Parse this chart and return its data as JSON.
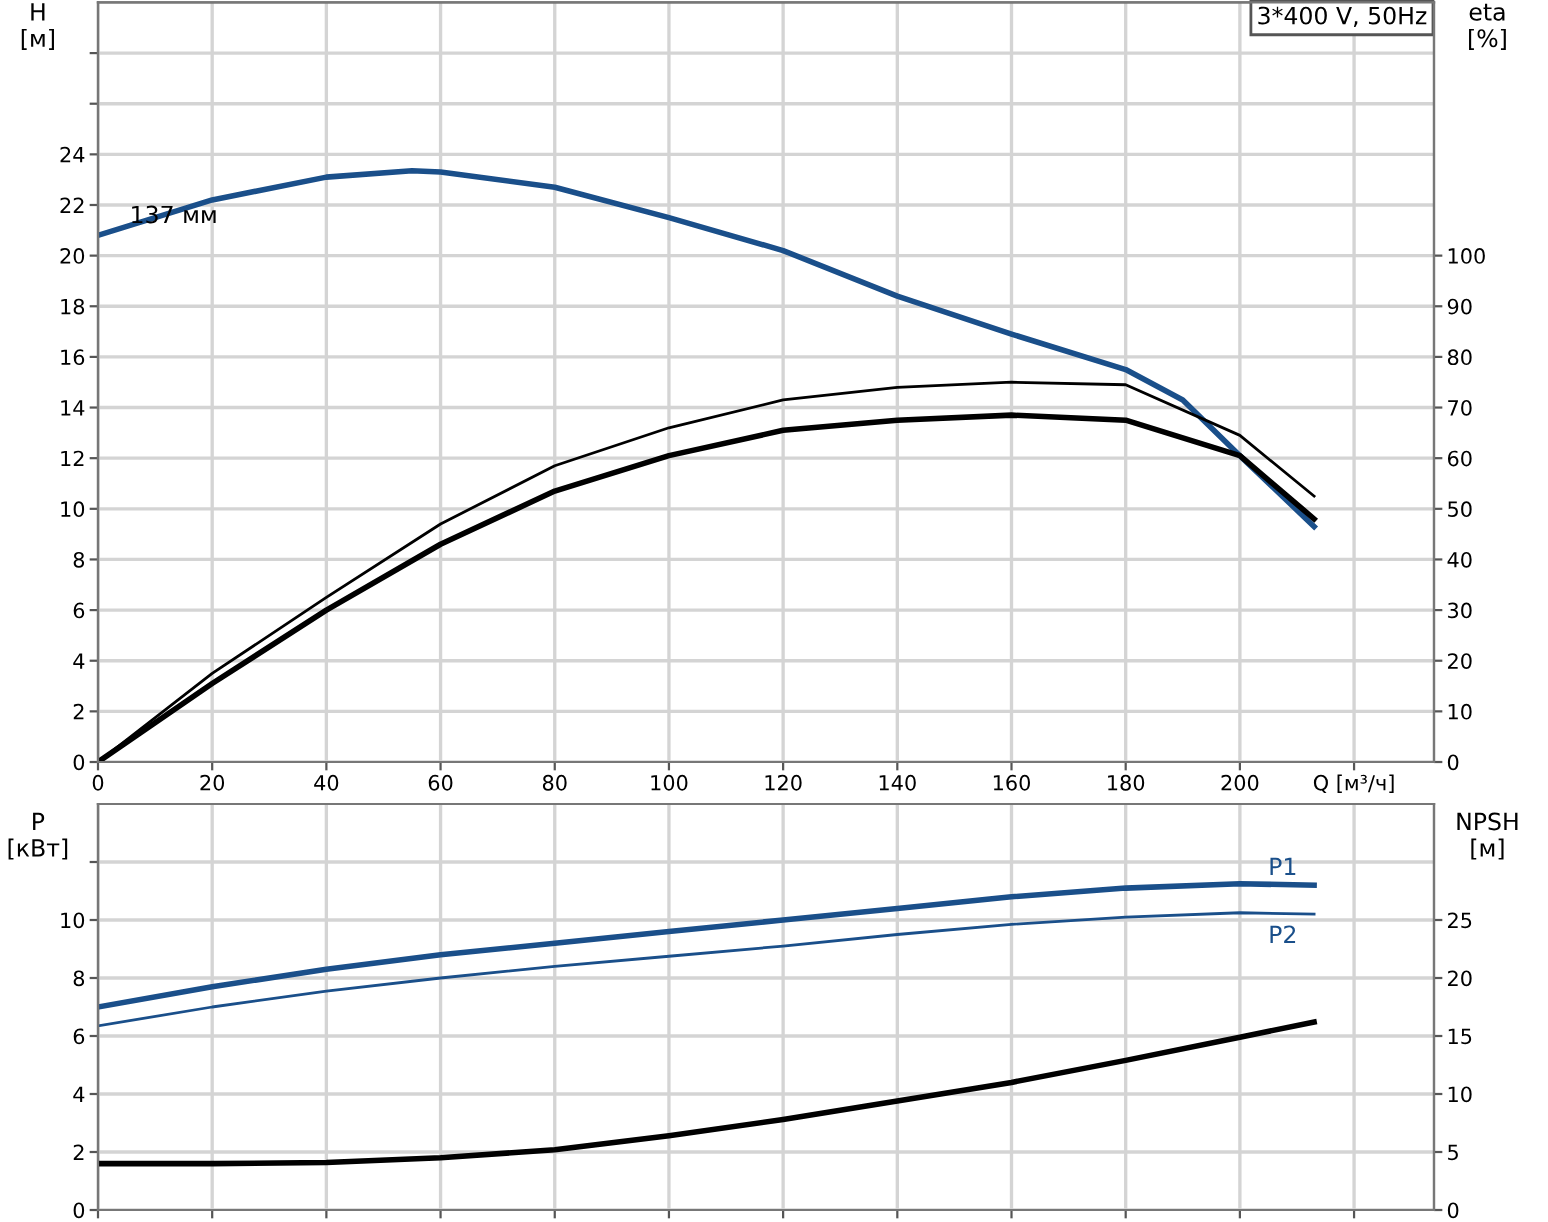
{
  "chart_data": [
    {
      "type": "line",
      "ylabel": "H\n[м]",
      "y2label": "eta\n[%]",
      "annotations": [
        "3*400 V, 50Hz",
        {
          "text": "137 мм",
          "x": 20,
          "y": 22.2
        }
      ],
      "xlim": [
        0,
        234
      ],
      "xticks": [
        0,
        20,
        40,
        60,
        80,
        100,
        120,
        140,
        160,
        180,
        200,
        {
          "value": 220,
          "label": "Q [м³/ч]"
        }
      ],
      "ylim": [
        0,
        30
      ],
      "yticks": [
        0,
        2,
        4,
        6,
        8,
        10,
        12,
        14,
        16,
        18,
        20,
        22,
        24,
        {
          "value": 26,
          "label": null
        },
        {
          "value": 28,
          "label": null
        }
      ],
      "y2lim": [
        0,
        150
      ],
      "y2ticks": [
        0,
        10,
        20,
        30,
        40,
        50,
        60,
        70,
        80,
        90,
        100
      ],
      "grid": true,
      "legend": false,
      "series": [
        {
          "color": "#1a4f8a",
          "x": [
            0,
            20,
            40,
            55,
            60,
            80,
            100,
            120,
            140,
            160,
            180,
            190,
            200,
            213
          ],
          "values": [
            20.8,
            22.2,
            23.1,
            23.35,
            23.3,
            22.7,
            21.5,
            20.2,
            18.4,
            16.9,
            15.5,
            14.3,
            12.1,
            9.3
          ]
        },
        {
          "color": "#000000",
          "axis": "y2",
          "x": [
            0,
            20,
            40,
            60,
            80,
            100,
            120,
            140,
            160,
            180,
            200,
            213
          ],
          "values": [
            0,
            17.5,
            32.5,
            47,
            58.5,
            66,
            71.5,
            74,
            75,
            74.5,
            64.5,
            52.5
          ]
        },
        {
          "color": "#000000",
          "axis": "y2",
          "x": [
            0,
            20,
            40,
            60,
            80,
            100,
            120,
            140,
            160,
            180,
            200,
            213
          ],
          "values": [
            0,
            15.5,
            30,
            43,
            53.5,
            60.5,
            65.5,
            67.5,
            68.5,
            67.5,
            60.5,
            48
          ]
        }
      ]
    },
    {
      "type": "line",
      "ylabel": "P\n[кВт]",
      "y2label": "NPSH\n[м]",
      "xlim": [
        0,
        234
      ],
      "xticks": [
        0,
        20,
        40,
        60,
        80,
        100,
        120,
        140,
        160,
        180,
        200,
        220
      ],
      "ylim": [
        0,
        14
      ],
      "yticks": [
        0,
        2,
        4,
        6,
        8,
        10,
        {
          "value": 12,
          "label": null
        }
      ],
      "y2lim": [
        0,
        35
      ],
      "y2ticks": [
        0,
        5,
        10,
        15,
        20,
        25
      ],
      "tick_labels": "y",
      "grid": true,
      "legend": false,
      "series": [
        {
          "name": "P1",
          "color": "#1a4f8a",
          "x": [
            0,
            20,
            40,
            60,
            80,
            100,
            120,
            140,
            160,
            180,
            200,
            213
          ],
          "values": [
            7.0,
            7.7,
            8.3,
            8.8,
            9.2,
            9.6,
            10.0,
            10.4,
            10.8,
            11.1,
            11.25,
            11.2
          ]
        },
        {
          "name": "P2",
          "color": "#1a4f8a",
          "x": [
            0,
            20,
            40,
            60,
            80,
            100,
            120,
            140,
            160,
            180,
            200,
            213
          ],
          "values": [
            6.35,
            7.0,
            7.55,
            8.0,
            8.4,
            8.75,
            9.1,
            9.5,
            9.85,
            10.1,
            10.25,
            10.2
          ]
        },
        {
          "color": "#000000",
          "axis": "y2",
          "x": [
            0,
            20,
            40,
            60,
            80,
            100,
            120,
            140,
            160,
            180,
            200,
            213
          ],
          "values": [
            4.0,
            4.0,
            4.1,
            4.5,
            5.2,
            6.4,
            7.8,
            9.4,
            11.0,
            12.9,
            14.9,
            16.2
          ]
        }
      ]
    }
  ]
}
